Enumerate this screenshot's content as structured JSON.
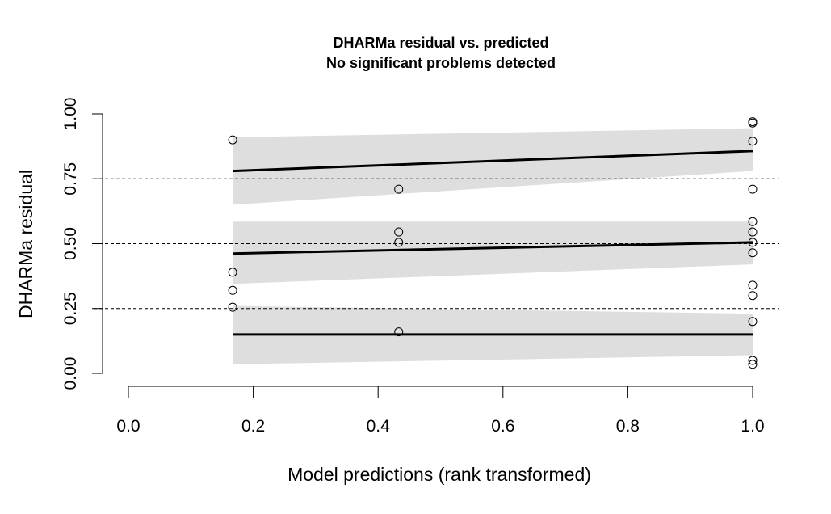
{
  "chart_data": {
    "type": "scatter",
    "title": "DHARMa residual vs. predicted",
    "subtitle": "No significant problems detected",
    "xlabel": "Model predictions (rank transformed)",
    "ylabel": "DHARMa residual",
    "xlim": [
      0.0,
      1.0
    ],
    "ylim": [
      0.0,
      1.0
    ],
    "x_ticks": [
      "0.0",
      "0.2",
      "0.4",
      "0.6",
      "0.8",
      "1.0"
    ],
    "y_ticks": [
      "0.00",
      "0.25",
      "0.50",
      "0.75",
      "1.00"
    ],
    "reference_lines": [
      0.25,
      0.5,
      0.75
    ],
    "points": [
      {
        "x": 0.167,
        "y": 0.9
      },
      {
        "x": 0.167,
        "y": 0.39
      },
      {
        "x": 0.167,
        "y": 0.32
      },
      {
        "x": 0.167,
        "y": 0.255
      },
      {
        "x": 0.433,
        "y": 0.71
      },
      {
        "x": 0.433,
        "y": 0.545
      },
      {
        "x": 0.433,
        "y": 0.505
      },
      {
        "x": 0.433,
        "y": 0.16
      },
      {
        "x": 1.0,
        "y": 0.97
      },
      {
        "x": 1.0,
        "y": 0.965
      },
      {
        "x": 1.0,
        "y": 0.895
      },
      {
        "x": 1.0,
        "y": 0.71
      },
      {
        "x": 1.0,
        "y": 0.585
      },
      {
        "x": 1.0,
        "y": 0.545
      },
      {
        "x": 1.0,
        "y": 0.505
      },
      {
        "x": 1.0,
        "y": 0.465
      },
      {
        "x": 1.0,
        "y": 0.34
      },
      {
        "x": 1.0,
        "y": 0.3
      },
      {
        "x": 1.0,
        "y": 0.2
      },
      {
        "x": 1.0,
        "y": 0.05
      },
      {
        "x": 1.0,
        "y": 0.035
      }
    ],
    "quantile_fits": [
      {
        "quantile": 0.25,
        "x": [
          0.167,
          1.0
        ],
        "fit": [
          0.15,
          0.15
        ],
        "lower": [
          0.035,
          0.07
        ],
        "upper": [
          0.26,
          0.23
        ]
      },
      {
        "quantile": 0.5,
        "x": [
          0.167,
          1.0
        ],
        "fit": [
          0.462,
          0.505
        ],
        "lower": [
          0.345,
          0.42
        ],
        "upper": [
          0.585,
          0.585
        ]
      },
      {
        "quantile": 0.75,
        "x": [
          0.167,
          1.0
        ],
        "fit": [
          0.78,
          0.857
        ],
        "lower": [
          0.65,
          0.78
        ],
        "upper": [
          0.91,
          0.945
        ]
      }
    ],
    "colors": {
      "band": "#dedede",
      "line": "#000000",
      "points": "#000000",
      "background": "#ffffff"
    }
  }
}
